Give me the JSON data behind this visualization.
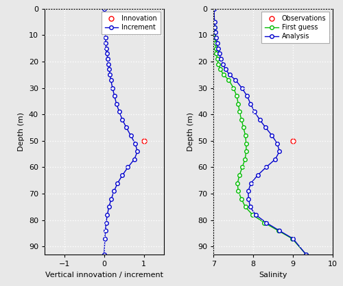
{
  "depths": [
    0,
    5,
    7,
    9,
    11,
    13,
    15,
    17,
    19,
    21,
    23,
    25,
    27,
    30,
    33,
    36,
    39,
    42,
    45,
    48,
    51,
    54,
    57,
    60,
    63,
    66,
    69,
    72,
    75,
    78,
    81,
    84,
    87,
    93
  ],
  "increment": [
    0.01,
    0.01,
    0.01,
    0.02,
    0.03,
    0.04,
    0.05,
    0.07,
    0.09,
    0.11,
    0.13,
    0.15,
    0.17,
    0.21,
    0.26,
    0.31,
    0.38,
    0.46,
    0.56,
    0.67,
    0.78,
    0.84,
    0.76,
    0.6,
    0.46,
    0.34,
    0.25,
    0.18,
    0.12,
    0.08,
    0.05,
    0.03,
    0.02,
    0.0
  ],
  "innovation_depth": [
    50
  ],
  "innovation_value": [
    1.0
  ],
  "first_guess_sal": [
    7.0,
    7.01,
    7.02,
    7.03,
    7.04,
    7.05,
    7.06,
    7.07,
    7.09,
    7.12,
    7.17,
    7.25,
    7.38,
    7.5,
    7.58,
    7.62,
    7.65,
    7.7,
    7.75,
    7.8,
    7.82,
    7.82,
    7.79,
    7.72,
    7.65,
    7.6,
    7.62,
    7.7,
    7.8,
    7.98,
    8.28,
    8.63,
    8.98,
    9.33
  ],
  "analysis_sal_delta": [
    0.01,
    0.01,
    0.01,
    0.02,
    0.03,
    0.04,
    0.05,
    0.07,
    0.09,
    0.11,
    0.13,
    0.15,
    0.17,
    0.21,
    0.26,
    0.31,
    0.38,
    0.46,
    0.56,
    0.67,
    0.78,
    0.84,
    0.76,
    0.6,
    0.46,
    0.34,
    0.25,
    0.18,
    0.12,
    0.08,
    0.05,
    0.03,
    0.02,
    0.0
  ],
  "obs_sal_depth": [
    50
  ],
  "obs_sal_value": [
    9.0
  ],
  "xlim_left": [
    -1.5,
    1.5
  ],
  "xlim_right": [
    7,
    10
  ],
  "ylim": [
    93,
    0
  ],
  "yticks": [
    0,
    10,
    20,
    30,
    40,
    50,
    60,
    70,
    80,
    90
  ],
  "xticks_left": [
    -1,
    0,
    1
  ],
  "xticks_right": [
    7,
    8,
    9,
    10
  ],
  "xlabel_left": "Vertical innovation / increment",
  "xlabel_right": "Salinity",
  "ylabel": "Depth (m)",
  "color_innovation": "#ff0000",
  "color_increment": "#0000cc",
  "color_observations": "#ff0000",
  "color_firstguess": "#00bb00",
  "color_analysis": "#0000cc",
  "fig_bg_color": "#e8e8e8",
  "ax_bg_color": "#e8e8e8",
  "grid_color": "#ffffff",
  "figsize": [
    5.0,
    4.18
  ],
  "dpi": 100
}
